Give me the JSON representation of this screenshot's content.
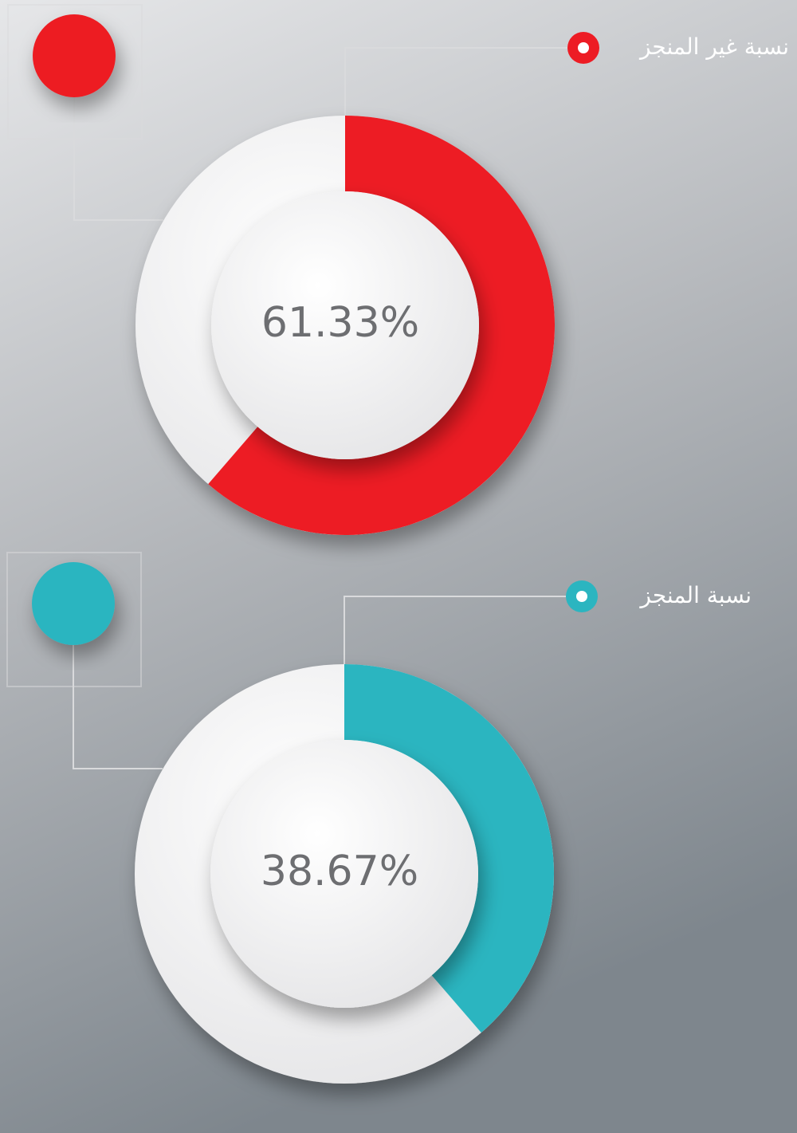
{
  "chart_data": [
    {
      "type": "donut",
      "series": [
        {
          "name": "نسبة غير المنجز",
          "color": "#ed1c24",
          "values": [
            61.33
          ]
        }
      ],
      "value_labels": [
        "61.33%"
      ]
    },
    {
      "type": "donut",
      "series": [
        {
          "name": "نسبة المنجز",
          "color": "#2bb5c0",
          "values": [
            38.67
          ]
        }
      ],
      "value_labels": [
        "38.67%"
      ]
    }
  ]
}
